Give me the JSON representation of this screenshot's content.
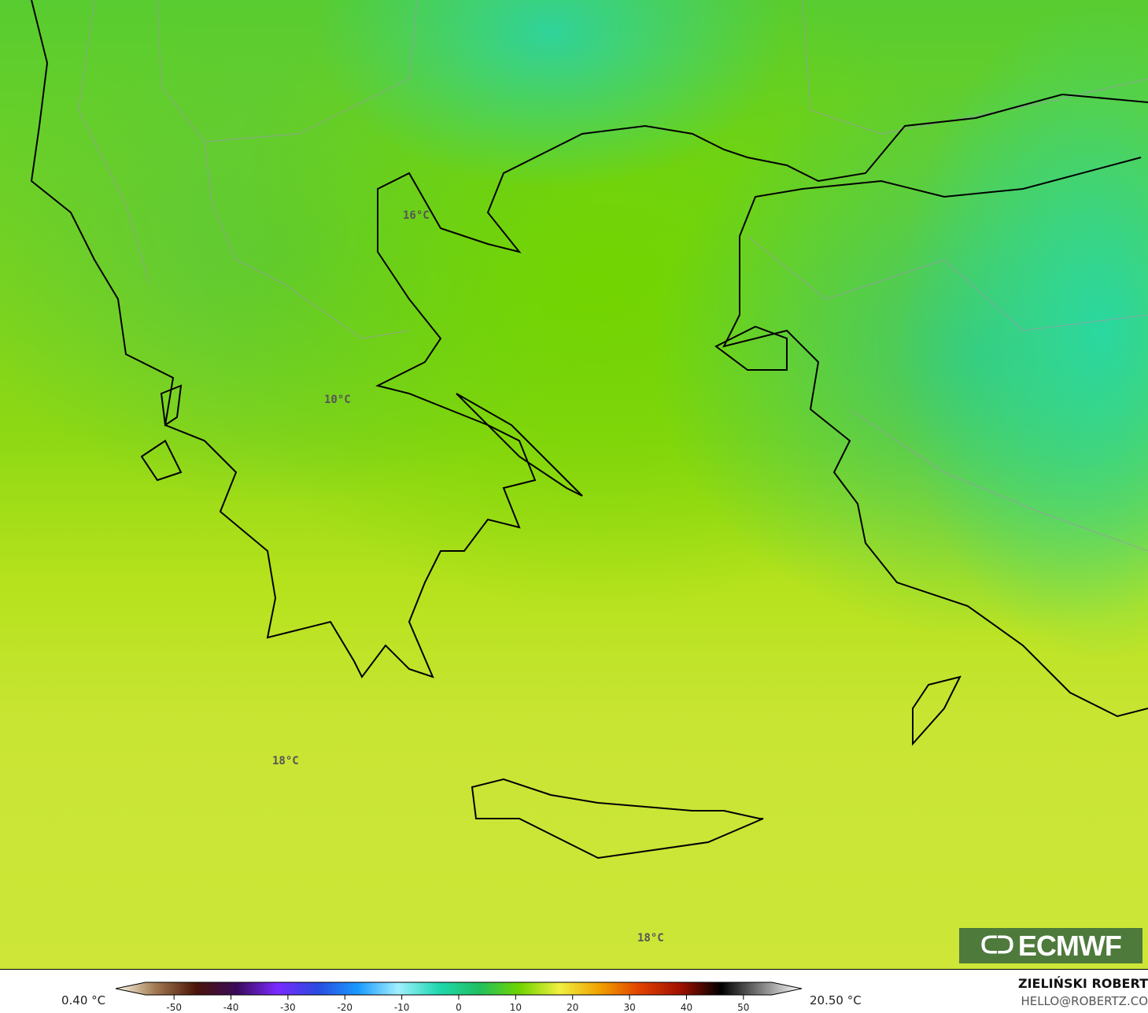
{
  "map": {
    "labels": [
      {
        "text": "16°C"
      },
      {
        "text": "10°C"
      },
      {
        "text": "18°C"
      },
      {
        "text": "18°C"
      }
    ],
    "logo": "ECMWF",
    "logo_icon": "ecmwf-logo-icon"
  },
  "colorbar": {
    "min_label": "0.40 °C",
    "max_label": "20.50 °C",
    "ticks": [
      "-50",
      "-40",
      "-30",
      "-20",
      "-10",
      "0",
      "10",
      "20",
      "30",
      "40",
      "50"
    ],
    "range": [
      -55,
      55
    ],
    "stops": [
      "#fffbe8",
      "#a07850",
      "#4a1408",
      "#3a0a5a",
      "#7a2aff",
      "#2a4ae0",
      "#1a9aff",
      "#a0f0ff",
      "#20d8b0",
      "#20c060",
      "#70d400",
      "#f0f040",
      "#f0a000",
      "#e04000",
      "#a01000",
      "#000000",
      "#808080",
      "#ffffff"
    ]
  },
  "credit": {
    "author": "ZIELIŃSKI ROBERT",
    "email": "HELLO@ROBERTZ.CO"
  }
}
